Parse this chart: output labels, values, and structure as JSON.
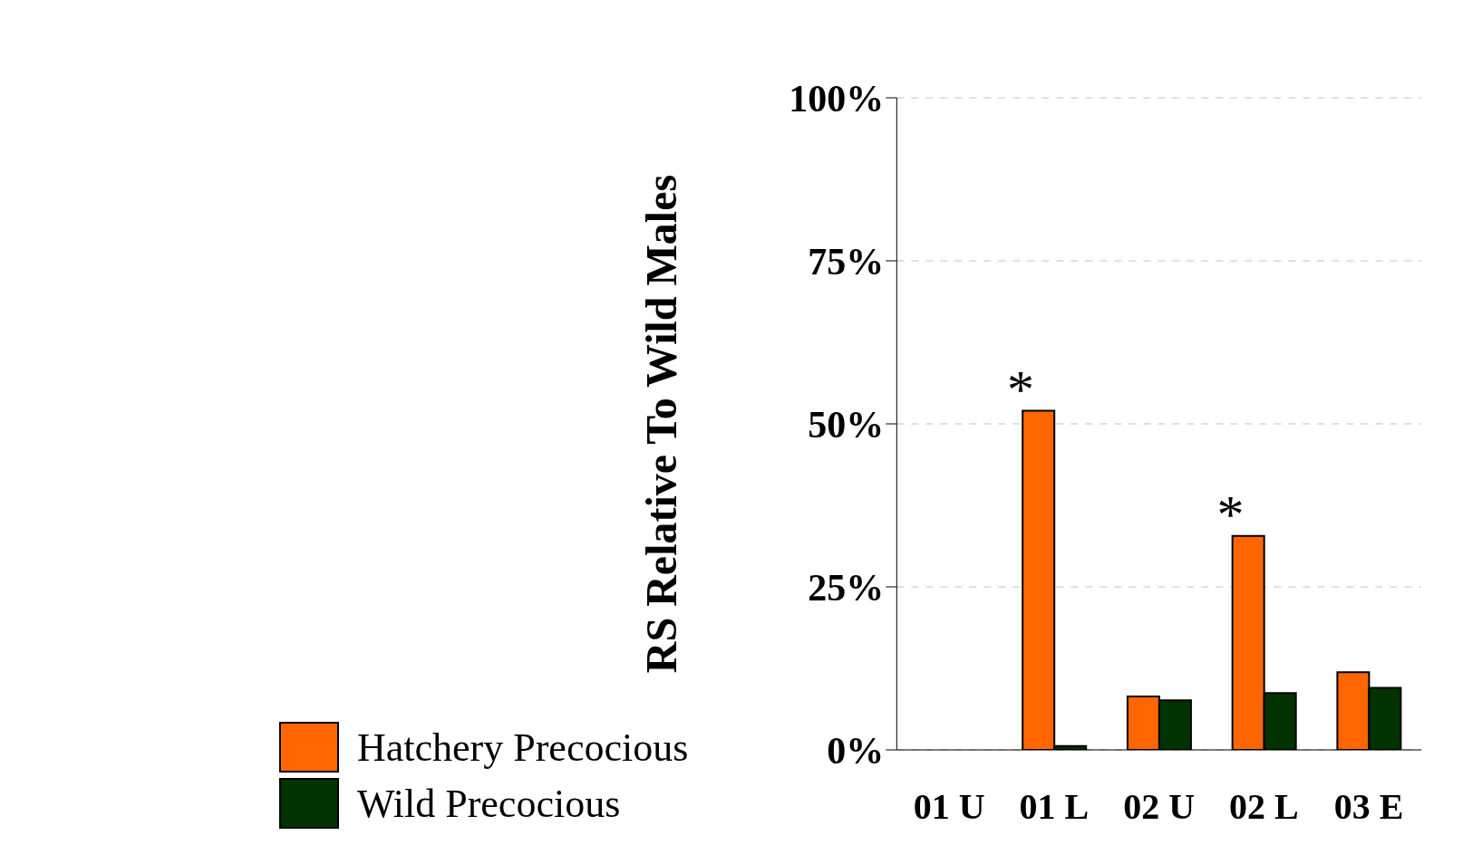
{
  "chart_data": {
    "type": "bar",
    "ylabel": "RS Relative To Wild Males",
    "categories": [
      "01 U",
      "01 L",
      "02 U",
      "02 L",
      "03 E"
    ],
    "series": [
      {
        "name": "Hatchery Precocious",
        "color": "#ff6600",
        "values": [
          null,
          52,
          8.2,
          32.8,
          11.9
        ]
      },
      {
        "name": "Wild Precocious",
        "color": "#003300",
        "values": [
          null,
          0.6,
          7.6,
          8.7,
          9.5
        ]
      }
    ],
    "ylim": [
      0,
      100
    ],
    "yticks": [
      {
        "value": 0,
        "label": "0%"
      },
      {
        "value": 25,
        "label": "25%"
      },
      {
        "value": 50,
        "label": "50%"
      },
      {
        "value": 75,
        "label": "75%"
      },
      {
        "value": 100,
        "label": "100%"
      }
    ],
    "grid": "y",
    "legend": "bottom left",
    "annotations": [
      {
        "text": "*",
        "x": "01 L",
        "y": 52
      },
      {
        "text": "*",
        "x": "02 L",
        "y": 32.8
      }
    ]
  }
}
